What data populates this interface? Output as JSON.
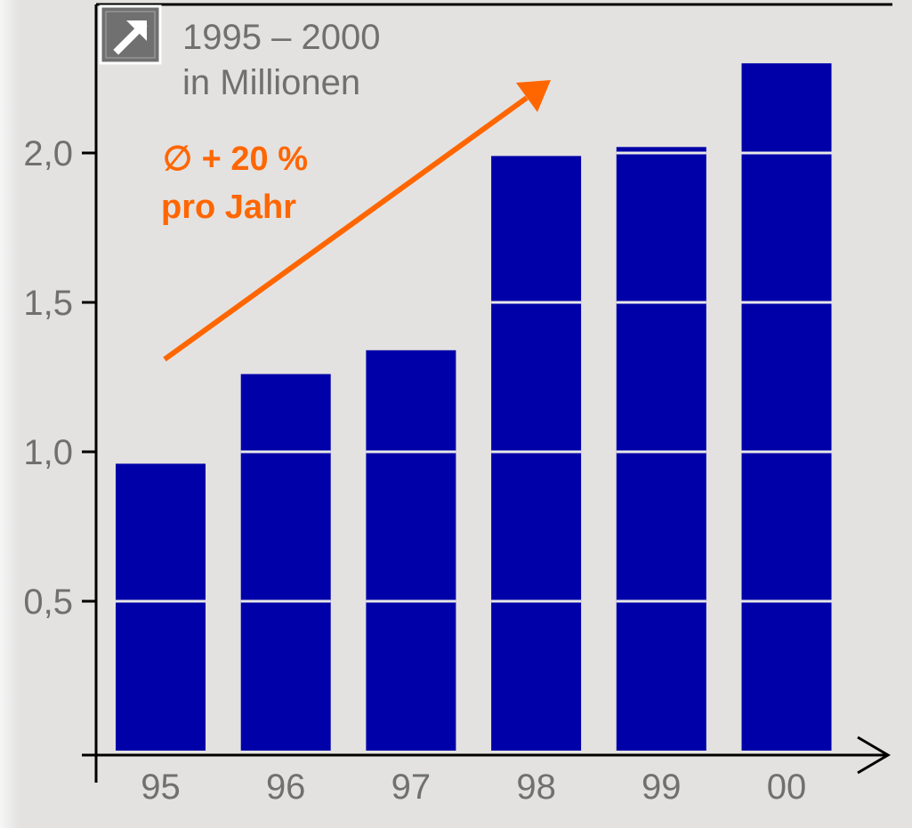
{
  "chart_data": {
    "type": "bar",
    "title": "1995 – 2000",
    "subtitle": "in Millionen",
    "categories": [
      "95",
      "96",
      "97",
      "98",
      "99",
      "00"
    ],
    "values": [
      0.96,
      1.26,
      1.34,
      1.99,
      2.02,
      2.3
    ],
    "yticks": [
      0.5,
      1.0,
      1.5,
      2.0
    ],
    "ytick_labels": [
      "0,5",
      "1,0",
      "1,5",
      "2,0"
    ],
    "ylim": [
      0,
      2.5
    ],
    "grid": false,
    "bar_segment_lines": true,
    "annotation": {
      "line1": "∅ + 20 %",
      "line2": "pro Jahr"
    }
  },
  "badge_icon": "arrow-up-right-icon",
  "colors": {
    "bar": "#0000a8",
    "background": "#e3e2e1",
    "trend_arrow": "#ff6600",
    "text_gray": "#707070",
    "axis": "#000000",
    "segment_line": "#e8e8e8",
    "badge_bg": "#707070"
  }
}
